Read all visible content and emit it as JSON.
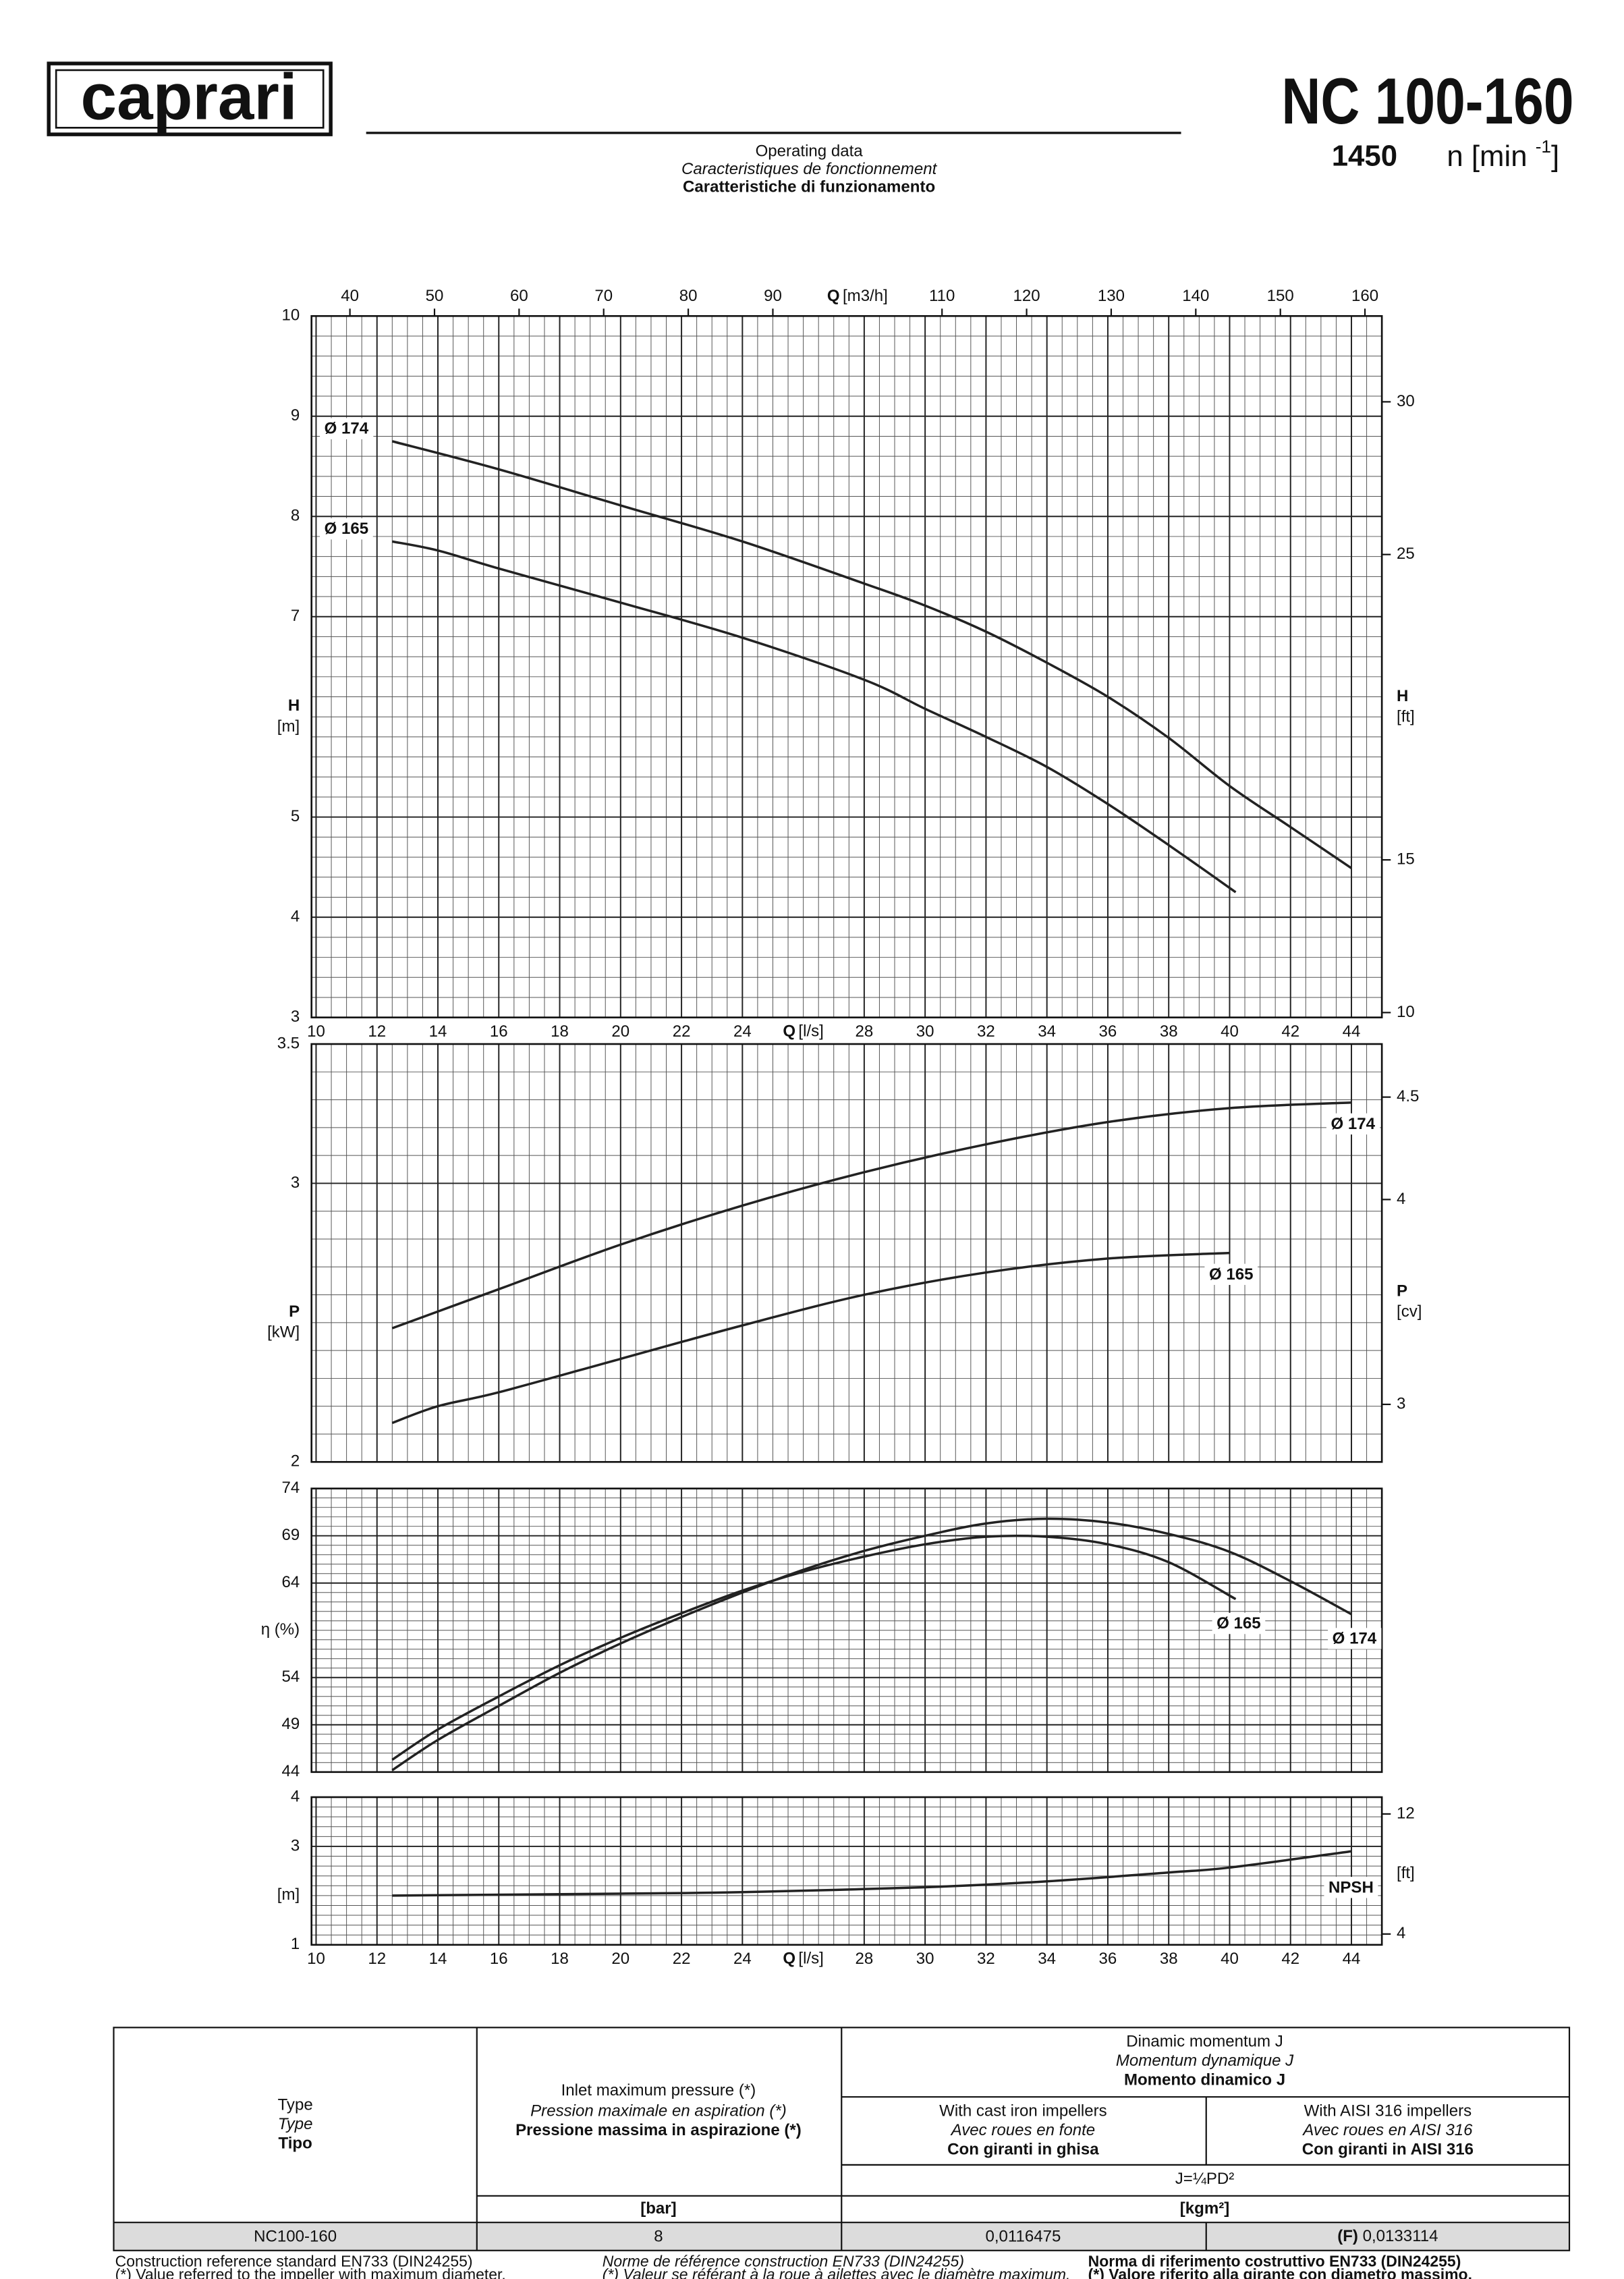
{
  "header": {
    "logo": "caprari",
    "model": "NC 100-160",
    "speed": "1450",
    "speed_unit": "n [min ",
    "speed_unit_exp": "-1",
    "speed_unit_close": "]",
    "subtitle": [
      "Operating data",
      "Caracteristiques de fonctionnement",
      "Caratteristiche di funzionamento"
    ]
  },
  "chart_data": [
    {
      "type": "line",
      "grid": true,
      "xlim": [
        9.85,
        45
      ],
      "xticks": [
        10,
        12,
        14,
        16,
        18,
        20,
        22,
        24,
        28,
        30,
        32,
        34,
        36,
        38,
        40,
        42,
        44
      ],
      "x_label": "Q",
      "x_unit": "[l/s]",
      "x2lim": [
        35.46,
        162
      ],
      "x2ticks": [
        40,
        50,
        60,
        70,
        80,
        90,
        110,
        120,
        130,
        140,
        150,
        160
      ],
      "x2_label": "Q",
      "x2_unit": "[m3/h]",
      "ylim": [
        3,
        10
      ],
      "yticks": [
        3,
        4,
        5,
        7,
        8,
        9,
        10
      ],
      "y_label": "H",
      "y_unit": "[m]",
      "y2lim": [
        9.84,
        32.81
      ],
      "y2ticks": [
        10,
        15,
        25,
        30
      ],
      "y2_label": "H",
      "y2_unit": "[ft]",
      "series": [
        {
          "name": "Ø 174",
          "color": "#222222",
          "x": [
            12.5,
            16,
            20,
            24,
            28,
            30,
            32,
            34,
            36,
            38,
            40,
            42,
            44
          ],
          "values": [
            8.75,
            8.47,
            8.11,
            7.75,
            7.33,
            7.11,
            6.85,
            6.54,
            6.2,
            5.79,
            5.31,
            4.9,
            4.49
          ]
        },
        {
          "name": "Ø 165",
          "color": "#222222",
          "x": [
            12.5,
            14,
            16,
            20,
            24,
            28,
            30,
            32,
            34,
            36,
            38,
            40.2
          ],
          "values": [
            7.75,
            7.66,
            7.48,
            7.14,
            6.79,
            6.37,
            6.08,
            5.8,
            5.5,
            5.13,
            4.72,
            4.25
          ]
        }
      ]
    },
    {
      "type": "line",
      "grid": true,
      "xlim": [
        9.85,
        45
      ],
      "xticks": [
        10,
        12,
        14,
        16,
        18,
        20,
        22,
        24,
        28,
        30,
        32,
        34,
        36,
        38,
        40,
        42,
        44
      ],
      "ylim": [
        2,
        3.5
      ],
      "yticks": [
        2,
        3,
        3.5
      ],
      "y_label": "P",
      "y_unit": "[kW]",
      "y2lim": [
        2.719,
        4.759
      ],
      "y2ticks": [
        3,
        4,
        4.5
      ],
      "y2_label": "P",
      "y2_unit": "[cv]",
      "series": [
        {
          "name": "Ø 174",
          "color": "#222222",
          "x": [
            12.5,
            14,
            16,
            20,
            24,
            28,
            32,
            36,
            40,
            44
          ],
          "values": [
            2.48,
            2.54,
            2.62,
            2.78,
            2.92,
            3.04,
            3.14,
            3.22,
            3.27,
            3.29
          ]
        },
        {
          "name": "Ø 165",
          "color": "#222222",
          "x": [
            12.5,
            14,
            16,
            20,
            24,
            28,
            32,
            36,
            40
          ],
          "values": [
            2.14,
            2.2,
            2.25,
            2.37,
            2.49,
            2.6,
            2.68,
            2.73,
            2.75
          ]
        }
      ]
    },
    {
      "type": "line",
      "grid": true,
      "xlim": [
        9.85,
        45
      ],
      "xticks": [
        10,
        12,
        14,
        16,
        18,
        20,
        22,
        24,
        28,
        30,
        32,
        34,
        36,
        38,
        40,
        42,
        44
      ],
      "ylim": [
        44,
        74
      ],
      "yticks": [
        44,
        49,
        54,
        64,
        69,
        74
      ],
      "y_label": "η (%)",
      "series": [
        {
          "name": "Ø 174",
          "color": "#222222",
          "x": [
            12.5,
            14,
            16,
            18,
            20,
            22,
            24,
            26,
            28,
            30,
            32,
            34,
            36,
            38,
            40,
            42,
            44
          ],
          "values": [
            44.2,
            47.4,
            51,
            54.5,
            57.6,
            60.4,
            63,
            65.4,
            67.4,
            69,
            70.3,
            70.8,
            70.4,
            69.2,
            67.3,
            64.2,
            60.7
          ]
        },
        {
          "name": "Ø 165",
          "color": "#222222",
          "x": [
            12.5,
            14,
            16,
            18,
            20,
            22,
            24,
            26,
            28,
            30,
            32,
            34,
            36,
            38,
            40.2
          ],
          "values": [
            45.3,
            48.5,
            52,
            55.3,
            58.2,
            60.8,
            63.2,
            65.2,
            66.8,
            68.1,
            68.9,
            68.9,
            68.1,
            66.2,
            62.3
          ]
        }
      ]
    },
    {
      "type": "line",
      "grid": true,
      "xlim": [
        9.85,
        45
      ],
      "xticks": [
        10,
        12,
        14,
        16,
        18,
        20,
        22,
        24,
        28,
        30,
        32,
        34,
        36,
        38,
        40,
        42,
        44
      ],
      "x_label": "Q",
      "x_unit": "[l/s]",
      "ylim": [
        1,
        4
      ],
      "yticks": [
        1,
        3,
        4
      ],
      "y_unit": "[m]",
      "y2lim": [
        3.28,
        13.12
      ],
      "y2ticks": [
        4,
        12
      ],
      "y2_unit": "[ft]",
      "series": [
        {
          "name": "NPSH",
          "color": "#222222",
          "x": [
            12.5,
            20,
            24,
            30,
            34,
            38,
            40,
            44
          ],
          "values": [
            2,
            2.04,
            2.07,
            2.17,
            2.29,
            2.47,
            2.57,
            2.9
          ]
        }
      ]
    }
  ],
  "table": {
    "head": {
      "type": [
        "Type",
        "Type",
        "Tipo"
      ],
      "inlet": [
        "Inlet maximum pressure (*)",
        "Pression maximale en aspiration (*)",
        "Pressione massima in aspirazione (*)"
      ],
      "inlet_unit": "[bar]",
      "moment": [
        "Dinamic momentum J",
        "Momentum dynamique J",
        "Momento dinamico J"
      ],
      "cast_iron": [
        "With cast iron impellers",
        "Avec roues en fonte",
        "Con giranti in ghisa"
      ],
      "aisi": [
        "With AISI 316 impellers",
        "Avec roues en AISI 316",
        "Con giranti in AISI 316"
      ],
      "formula": "J=¼PD²",
      "moment_unit": "[kgm²]"
    },
    "rows": [
      [
        "NC100-160",
        "8",
        "0,0116475",
        {
          "flag": "(F)",
          "value": " 0,0133114"
        }
      ]
    ]
  },
  "footer": [
    [
      "Construction reference standard EN733 (DIN24255)",
      "(*) Value referred to the impeller with maximum diameter."
    ],
    [
      "Norme de référence construction EN733 (DIN24255)",
      "(*) Valeur se référant à la roue à ailettes avec le diamètre maximum."
    ],
    [
      "Norma di riferimento costruttivo EN733 (DIN24255)",
      "(*) Valore riferito alla girante con diametro massimo."
    ]
  ]
}
